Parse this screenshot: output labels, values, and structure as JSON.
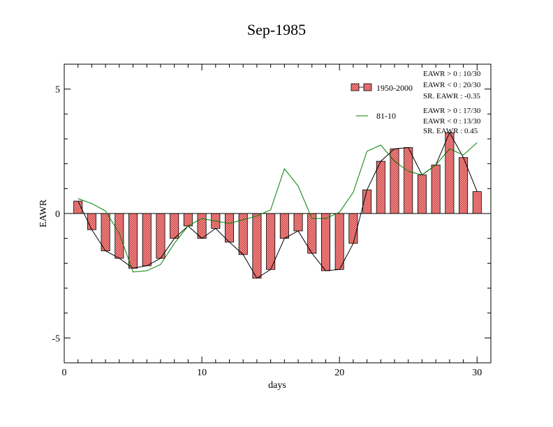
{
  "chart_data": {
    "type": "bar",
    "title": "Sep-1985",
    "xlabel": "days",
    "ylabel": "EAWR",
    "xlim": [
      0,
      31
    ],
    "ylim": [
      -6,
      6
    ],
    "xticks": [
      0,
      10,
      20,
      30
    ],
    "yticks": [
      -5,
      0,
      5
    ],
    "grid": false,
    "legend_position": "top-right",
    "x": [
      1,
      2,
      3,
      4,
      5,
      6,
      7,
      8,
      9,
      10,
      11,
      12,
      13,
      14,
      15,
      16,
      17,
      18,
      19,
      20,
      21,
      22,
      23,
      24,
      25,
      26,
      27,
      28,
      29,
      30
    ],
    "series": [
      {
        "name": "1950-2000",
        "kind": "bar",
        "color": "#e87a7a",
        "values": [
          0.5,
          -0.65,
          -1.5,
          -1.8,
          -2.2,
          -2.1,
          -1.8,
          -1.0,
          -0.5,
          -1.0,
          -0.6,
          -1.15,
          -1.65,
          -2.6,
          -2.25,
          -1.0,
          -0.7,
          -1.6,
          -2.3,
          -2.25,
          -1.2,
          0.95,
          2.1,
          2.6,
          2.65,
          1.55,
          1.95,
          3.25,
          2.25,
          0.88
        ]
      },
      {
        "name": "81-10",
        "kind": "line",
        "color": "#008000",
        "values": [
          0.6,
          0.4,
          0.1,
          -0.8,
          -2.35,
          -2.3,
          -2.05,
          -1.2,
          -0.5,
          -0.2,
          -0.3,
          -0.4,
          -0.25,
          -0.1,
          0.15,
          1.8,
          1.1,
          -0.2,
          -0.2,
          0.05,
          0.85,
          2.5,
          2.75,
          2.1,
          1.7,
          1.55,
          1.95,
          2.6,
          2.35,
          2.85
        ]
      }
    ],
    "stats": {
      "block1": [
        "EAWR > 0 : 10/30",
        "EAWR < 0 : 20/30",
        "SR. EAWR : -0.35"
      ],
      "block2": [
        "EAWR > 0 : 17/30",
        "EAWR < 0 : 13/30",
        "SR. EAWR :  0.45"
      ]
    }
  }
}
